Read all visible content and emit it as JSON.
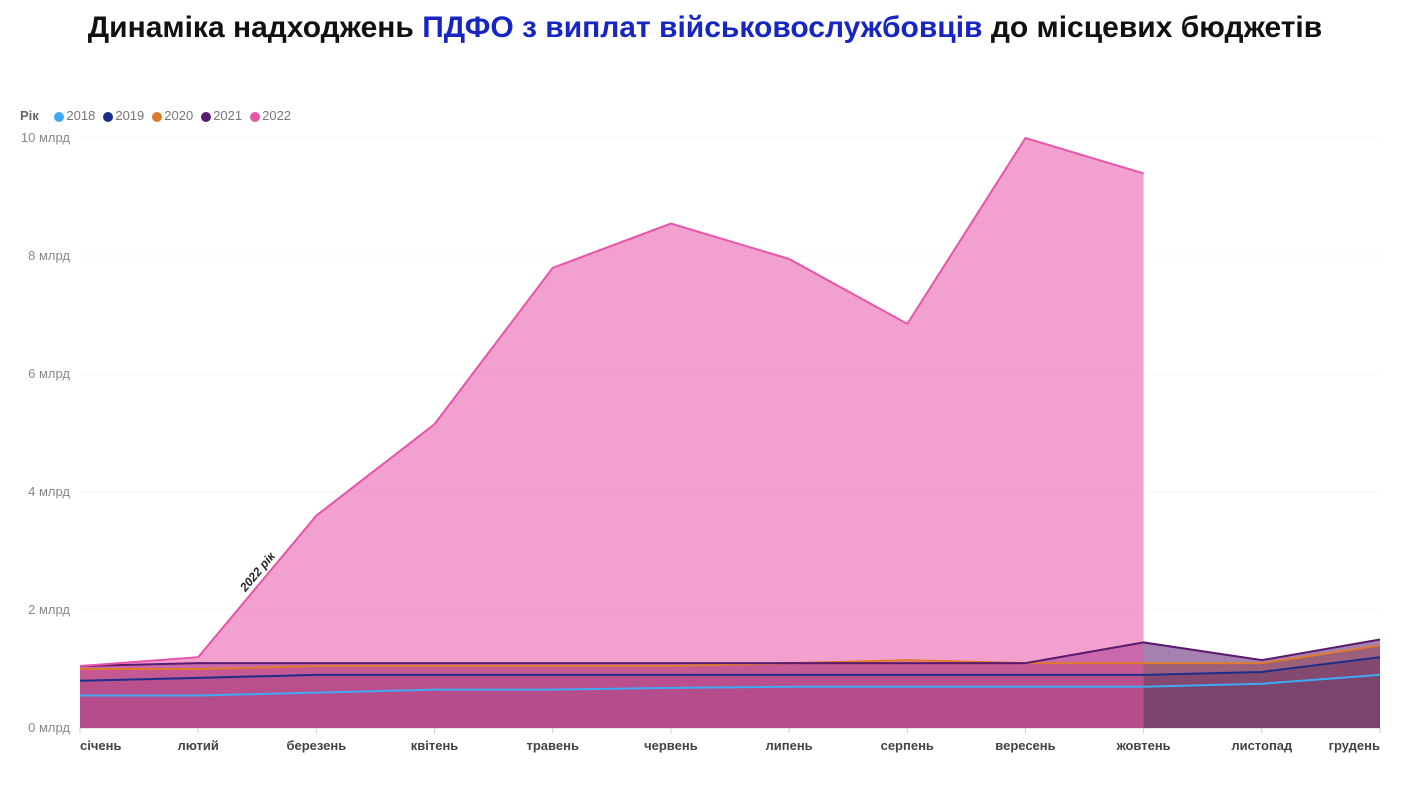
{
  "title": {
    "part1": "Динаміка надходжень ",
    "highlight": "ПДФО з виплат військовослужбовців",
    "part2": " до місцевих бюджетів"
  },
  "legend_label": "Рік",
  "chart": {
    "type": "area",
    "categories": [
      "січень",
      "лютий",
      "березень",
      "квітень",
      "травень",
      "червень",
      "липень",
      "серпень",
      "вересень",
      "жовтень",
      "листопад",
      "грудень"
    ],
    "ylim": [
      0,
      10
    ],
    "ytick_step": 2,
    "y_unit_suffix": " млрд",
    "background_color": "#ffffff",
    "grid_color": "#f5f5f5",
    "axis_color": "#cccccc",
    "label_fontsize": 13,
    "line_width": 2,
    "fill_opacity": 0.55,
    "series": [
      {
        "name": "2018",
        "color": "#3fa9f5",
        "values": [
          0.55,
          0.55,
          0.6,
          0.65,
          0.65,
          0.68,
          0.7,
          0.7,
          0.7,
          0.7,
          0.75,
          0.9
        ]
      },
      {
        "name": "2019",
        "color": "#1b2f8a",
        "values": [
          0.8,
          0.85,
          0.9,
          0.9,
          0.9,
          0.9,
          0.9,
          0.9,
          0.9,
          0.9,
          0.95,
          1.2
        ]
      },
      {
        "name": "2020",
        "color": "#e07b2e",
        "values": [
          1.0,
          1.0,
          1.05,
          1.05,
          1.05,
          1.05,
          1.1,
          1.15,
          1.1,
          1.1,
          1.1,
          1.4
        ]
      },
      {
        "name": "2021",
        "color": "#5a1a6e",
        "values": [
          1.05,
          1.1,
          1.1,
          1.1,
          1.1,
          1.1,
          1.1,
          1.1,
          1.1,
          1.45,
          1.15,
          1.5
        ]
      },
      {
        "name": "2022",
        "color": "#e754a8",
        "values": [
          1.05,
          1.2,
          3.6,
          5.15,
          7.8,
          8.55,
          7.95,
          6.85,
          10.0,
          9.4,
          null,
          null
        ]
      }
    ],
    "annotation": {
      "text": "2022 рік",
      "month_index": 1.4,
      "value": 2.3,
      "rotate": -50
    }
  }
}
